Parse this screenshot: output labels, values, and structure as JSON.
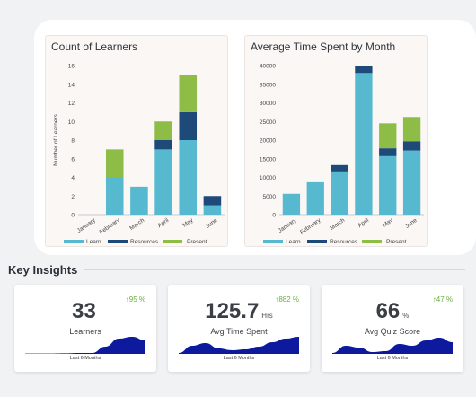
{
  "colors": {
    "learn": "#57b9cf",
    "resources": "#1e4a7a",
    "present": "#8dbd47",
    "spark": "#0d1a9e",
    "accent_up": "#6aae3f"
  },
  "charts": {
    "learners": {
      "title": "Count of Learners",
      "chart_data": {
        "type": "bar",
        "stacked": true,
        "title": "Count of Learners",
        "xlabel": "",
        "ylabel": "Number of Learners",
        "ylim": [
          0,
          16
        ],
        "yticks": [
          0,
          2,
          4,
          6,
          8,
          10,
          12,
          14,
          16
        ],
        "grid": false,
        "legend": "bottom",
        "categories": [
          "January",
          "February",
          "March",
          "April",
          "May",
          "June"
        ],
        "series": [
          {
            "name": "Learn",
            "values": [
              0,
              4,
              3,
              7,
              8,
              1
            ]
          },
          {
            "name": "Resources",
            "values": [
              0,
              0,
              0,
              1,
              3,
              1
            ]
          },
          {
            "name": "Present",
            "values": [
              0,
              3,
              0,
              2,
              4,
              0
            ]
          }
        ]
      }
    },
    "time": {
      "title": "Average Time Spent by Month",
      "chart_data": {
        "type": "bar",
        "stacked": true,
        "title": "Average Time Spent by Month",
        "xlabel": "",
        "ylabel": "",
        "ylim": [
          0,
          40000
        ],
        "yticks": [
          0,
          5000,
          10000,
          15000,
          20000,
          25000,
          30000,
          35000,
          40000
        ],
        "grid": false,
        "legend": "bottom",
        "categories": [
          "January",
          "February",
          "March",
          "April",
          "May",
          "June"
        ],
        "series": [
          {
            "name": "Learn",
            "values": [
              5600,
              8700,
              11600,
              38000,
              15700,
              17200
            ]
          },
          {
            "name": "Resources",
            "values": [
              0,
              0,
              1700,
              2000,
              2100,
              2500
            ]
          },
          {
            "name": "Present",
            "values": [
              0,
              0,
              0,
              0,
              6700,
              6500
            ]
          }
        ]
      }
    }
  },
  "insights": {
    "title": "Key Insights",
    "cards": [
      {
        "value": "33",
        "unit": "",
        "change": "↑95 %",
        "label": "Learners",
        "sub": "Last 6 Months",
        "trend": [
          0.02,
          0.02,
          0.02,
          0.03,
          0.05,
          0.05,
          0.4,
          0.85,
          0.95,
          0.75
        ]
      },
      {
        "value": "125.7",
        "unit": "Hrs",
        "change": "↑882 %",
        "label": "Avg Time Spent",
        "sub": "Last 6 Months",
        "trend": [
          0.05,
          0.45,
          0.6,
          0.3,
          0.2,
          0.25,
          0.4,
          0.65,
          0.85,
          0.95
        ]
      },
      {
        "value": "66",
        "unit": "%",
        "change": "↑47 %",
        "label": "Avg Quiz Score",
        "sub": "Last 6 Months",
        "trend": [
          0.05,
          0.45,
          0.35,
          0.1,
          0.15,
          0.55,
          0.45,
          0.75,
          0.9,
          0.65
        ]
      }
    ]
  }
}
